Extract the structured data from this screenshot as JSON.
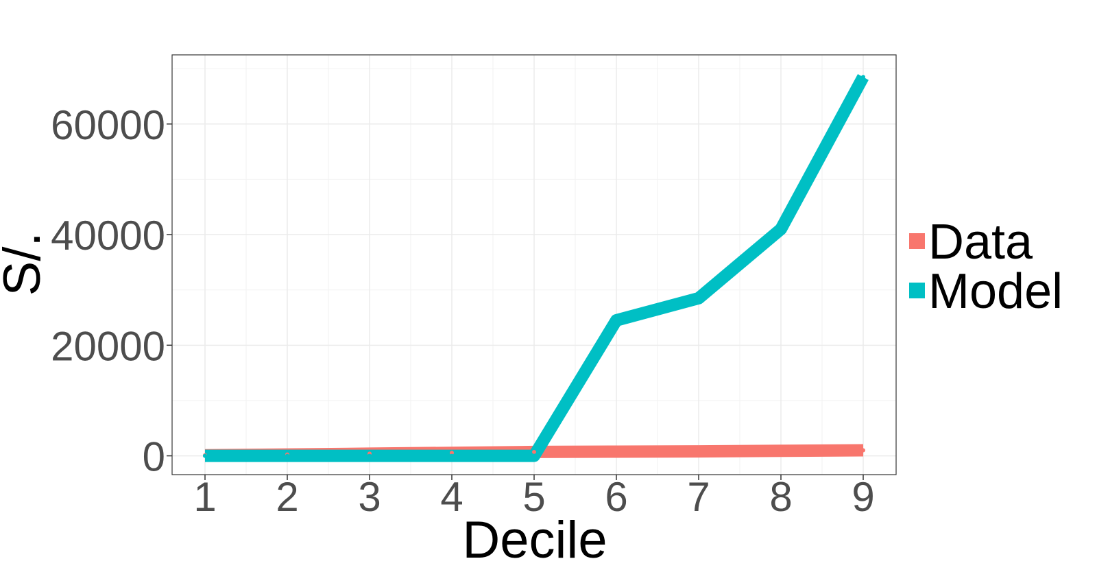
{
  "chart_data": {
    "type": "line",
    "title": "",
    "xlabel": "Decile",
    "ylabel": "S/.",
    "x": [
      1,
      2,
      3,
      4,
      5,
      6,
      7,
      8,
      9
    ],
    "x_tick_labels": [
      "1",
      "2",
      "3",
      "4",
      "5",
      "6",
      "7",
      "8",
      "9"
    ],
    "y_ticks": [
      0,
      20000,
      40000,
      60000
    ],
    "y_tick_labels": [
      "0",
      "20000",
      "40000",
      "60000"
    ],
    "xlim": [
      0.6,
      9.4
    ],
    "ylim": [
      -3400,
      72500
    ],
    "grid": true,
    "legend_position": "right",
    "series": [
      {
        "name": "Data",
        "color": "#F8766D",
        "values": [
          100,
          250,
          400,
          550,
          700,
          750,
          800,
          900,
          1000
        ]
      },
      {
        "name": "Model",
        "color": "#00BFC4",
        "values": [
          0,
          0,
          0,
          0,
          0,
          24500,
          28500,
          41000,
          68500
        ]
      }
    ]
  }
}
